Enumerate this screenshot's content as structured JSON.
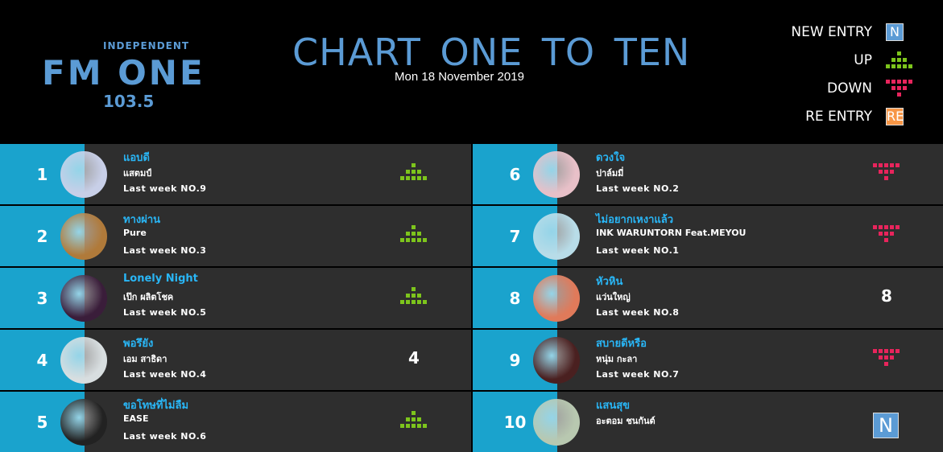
{
  "header": {
    "logo": {
      "top": "INDEPENDENT",
      "name": "FM ONE",
      "frequency": "103.5"
    },
    "title": "CHART ONE TO TEN",
    "date": "Mon 18 November 2019"
  },
  "legend": [
    {
      "label": "NEW ENTRY",
      "status": "new",
      "icon": "N"
    },
    {
      "label": "UP",
      "status": "up"
    },
    {
      "label": "DOWN",
      "status": "down"
    },
    {
      "label": "RE ENTRY",
      "status": "re",
      "icon": "RE"
    }
  ],
  "entries": [
    {
      "rank": "1",
      "title": "แอบดี",
      "artist": "แสตมป์",
      "last_week": "Last week NO.9",
      "status": "up"
    },
    {
      "rank": "2",
      "title": "ทางผ่าน",
      "artist": "Pure",
      "last_week": "Last week NO.3",
      "status": "up"
    },
    {
      "rank": "3",
      "title": "Lonely Night",
      "artist": "เป๊ก ผลิตโชค",
      "last_week": "Last week NO.5",
      "status": "up"
    },
    {
      "rank": "4",
      "title": "พอรึยัง",
      "artist": "เอม สาธิดา",
      "last_week": "Last week NO.4",
      "status": "same",
      "indicator": "4"
    },
    {
      "rank": "5",
      "title": "ขอโทษที่ไม่ลืม",
      "artist": "EASE",
      "last_week": "Last week NO.6",
      "status": "up"
    },
    {
      "rank": "6",
      "title": "ดวงใจ",
      "artist": "ปาล์มมี่",
      "last_week": "Last week NO.2",
      "status": "down"
    },
    {
      "rank": "7",
      "title": "ไม่อยากเหงาแล้ว",
      "artist": "INK WARUNTORN Feat.MEYOU",
      "last_week": "Last week NO.1",
      "status": "down"
    },
    {
      "rank": "8",
      "title": "หัวหิน",
      "artist": "แว่นใหญ่",
      "last_week": "Last week NO.8",
      "status": "same",
      "indicator": "8"
    },
    {
      "rank": "9",
      "title": "สบายดีหรือ",
      "artist": "หนุ่ม กะลา",
      "last_week": "Last week NO.7",
      "status": "down"
    },
    {
      "rank": "10",
      "title": "แสนสุข",
      "artist": "อะตอม ชนกันต์",
      "status": "new"
    }
  ]
}
